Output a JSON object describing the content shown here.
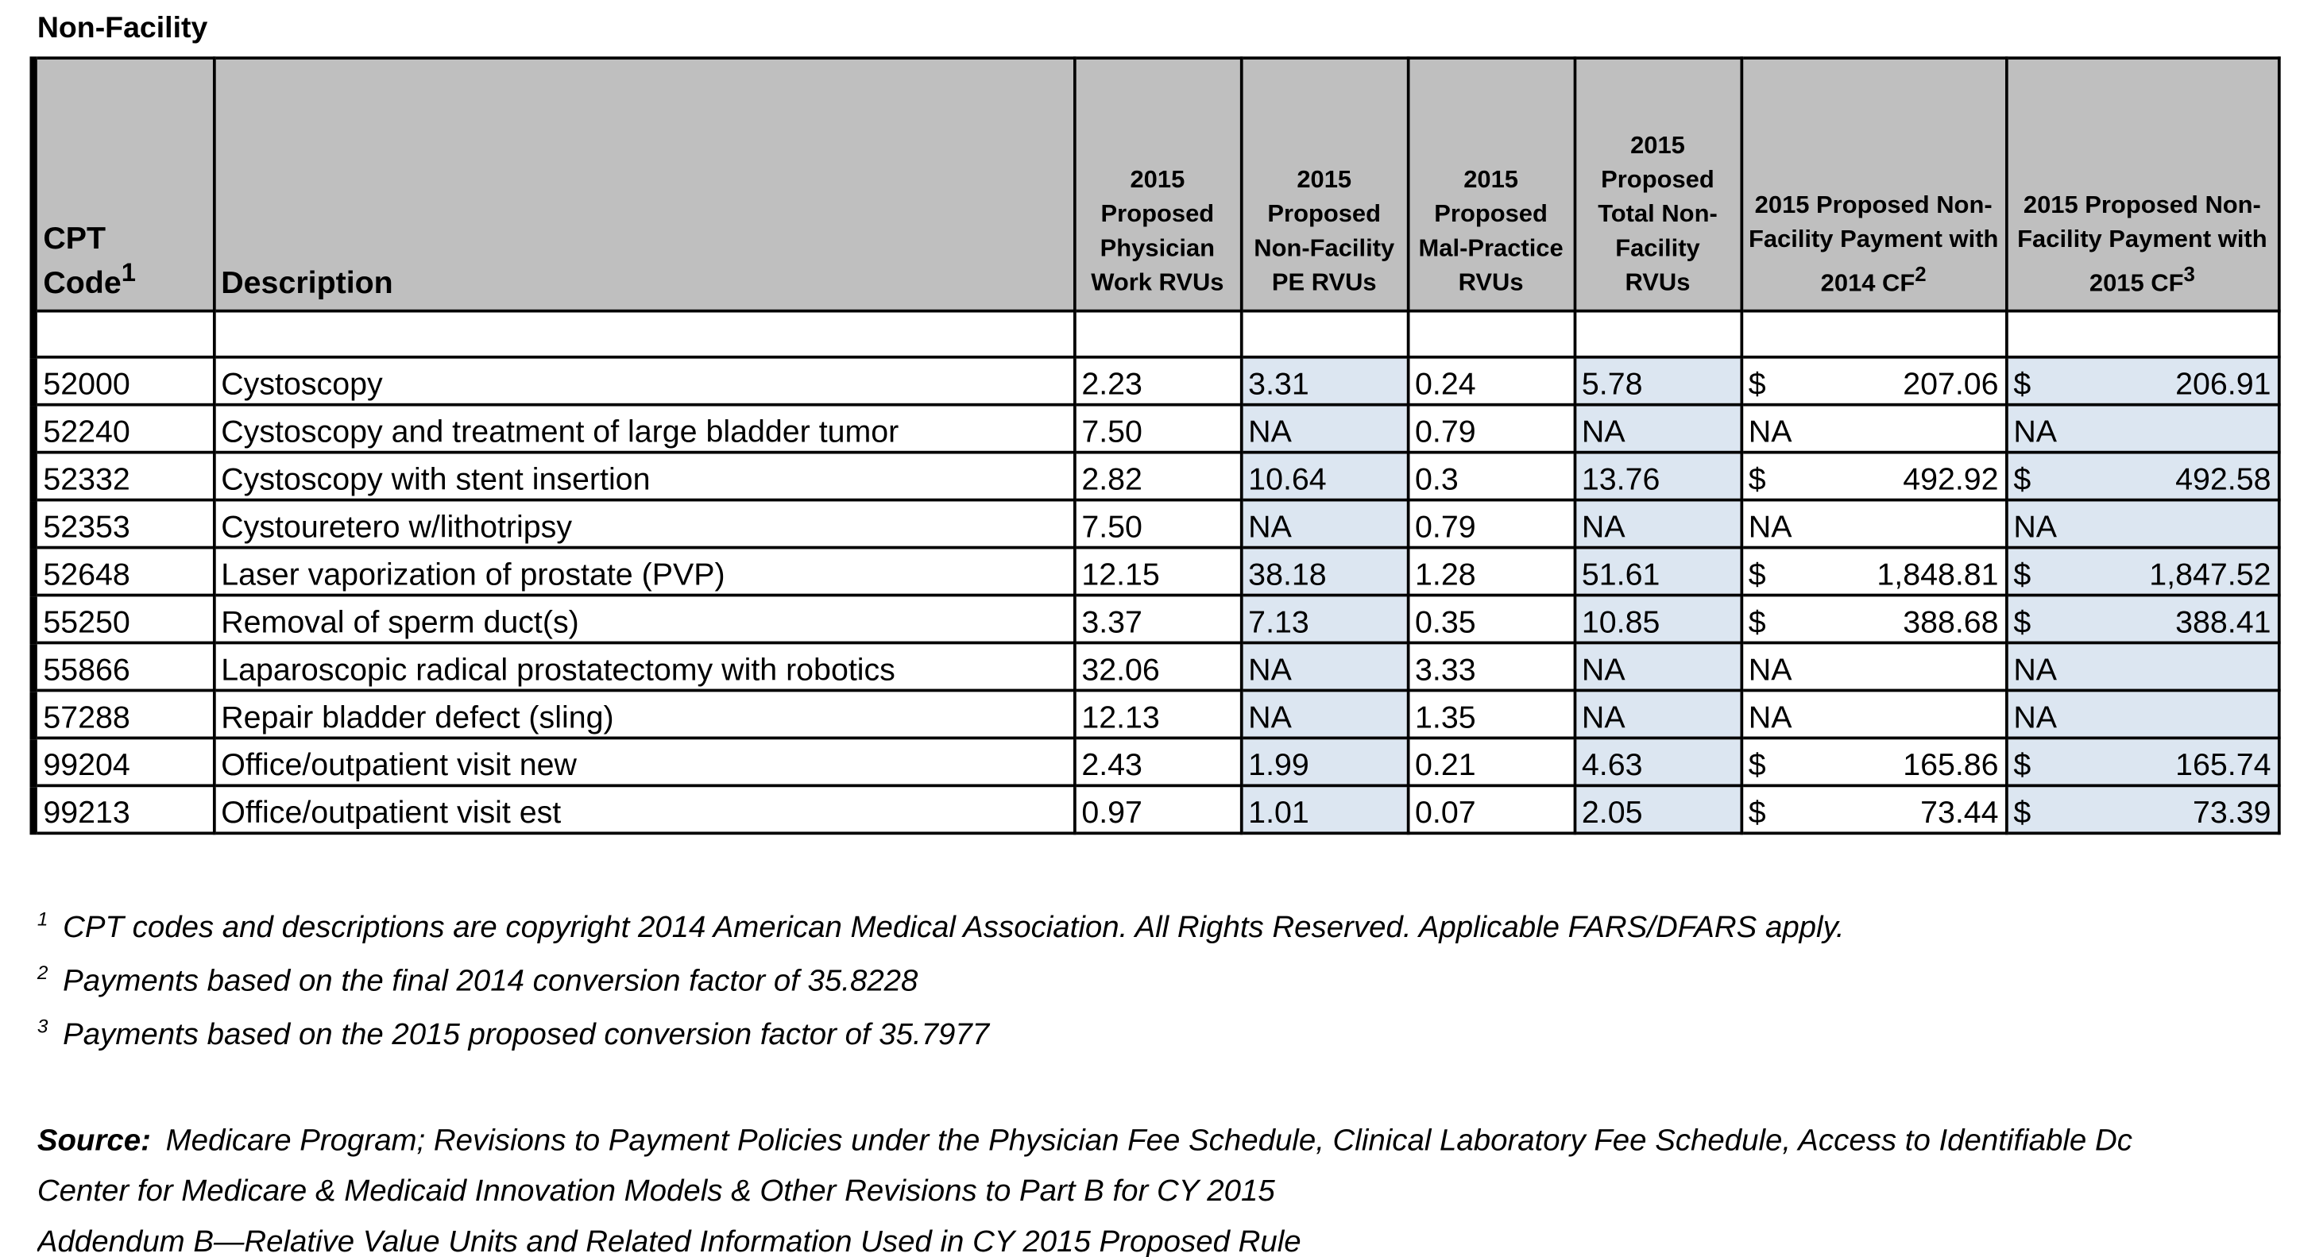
{
  "title": "Non-Facility",
  "table": {
    "header": [
      {
        "text": "CPT Code",
        "sup": "1"
      },
      {
        "text": "Description"
      },
      {
        "text": "2015 Proposed Physician Work RVUs"
      },
      {
        "text": "2015 Proposed Non-Facility PE RVUs"
      },
      {
        "text": "2015 Proposed Mal-Practice RVUs"
      },
      {
        "text": "2015 Proposed Total Non-Facility RVUs"
      },
      {
        "text": "2015 Proposed Non-Facility Payment with 2014 CF",
        "sup": "2"
      },
      {
        "text": "2015 Proposed Non-Facility Payment with 2015 CF",
        "sup": "3"
      }
    ],
    "rows": [
      [
        "52000",
        "Cystoscopy",
        "2.23",
        "3.31",
        "0.24",
        "5.78",
        {
          "symbol": "$",
          "amount": "207.06"
        },
        {
          "symbol": "$",
          "amount": "206.91"
        }
      ],
      [
        "52240",
        "Cystoscopy and treatment of large bladder tumor",
        "7.50",
        "NA",
        "0.79",
        "NA",
        "NA",
        "NA"
      ],
      [
        "52332",
        "Cystoscopy with stent insertion",
        "2.82",
        "10.64",
        "0.3",
        "13.76",
        {
          "symbol": "$",
          "amount": "492.92"
        },
        {
          "symbol": "$",
          "amount": "492.58"
        }
      ],
      [
        "52353",
        "Cystouretero w/lithotripsy",
        "7.50",
        "NA",
        "0.79",
        "NA",
        "NA",
        "NA"
      ],
      [
        "52648",
        "Laser vaporization of prostate (PVP)",
        "12.15",
        "38.18",
        "1.28",
        "51.61",
        {
          "symbol": "$",
          "amount": "1,848.81"
        },
        {
          "symbol": "$",
          "amount": "1,847.52"
        }
      ],
      [
        "55250",
        "Removal of sperm duct(s)",
        "3.37",
        "7.13",
        "0.35",
        "10.85",
        {
          "symbol": "$",
          "amount": "388.68"
        },
        {
          "symbol": "$",
          "amount": "388.41"
        }
      ],
      [
        "55866",
        "Laparoscopic radical prostatectomy with robotics",
        "32.06",
        "NA",
        "3.33",
        "NA",
        "NA",
        "NA"
      ],
      [
        "57288",
        "Repair bladder defect (sling)",
        "12.13",
        "NA",
        "1.35",
        "NA",
        "NA",
        "NA"
      ],
      [
        "99204",
        "Office/outpatient visit new",
        "2.43",
        "1.99",
        "0.21",
        "4.63",
        {
          "symbol": "$",
          "amount": "165.86"
        },
        {
          "symbol": "$",
          "amount": "165.74"
        }
      ],
      [
        "99213",
        "Office/outpatient visit est",
        "0.97",
        "1.01",
        "0.07",
        "2.05",
        {
          "symbol": "$",
          "amount": "73.44"
        },
        {
          "symbol": "$",
          "amount": "73.39"
        }
      ]
    ]
  },
  "footnotes": [
    {
      "marker": "1",
      "text": "CPT codes and descriptions are copyright 2014 American Medical Association. All Rights Reserved. Applicable FARS/DFARS apply."
    },
    {
      "marker": "2",
      "text": "Payments based on the final 2014 conversion factor of 35.8228"
    },
    {
      "marker": "3",
      "text": "Payments based on the 2015 proposed conversion factor of 35.7977"
    }
  ],
  "source": {
    "label": "Source:",
    "lines": [
      "Medicare Program; Revisions to Payment Policies under the Physician Fee Schedule, Clinical Laboratory Fee Schedule, Access to Identifiable Dc",
      "Center for Medicare & Medicaid Innovation Models & Other Revisions to Part B for CY 2015",
      "Addendum B—Relative Value Units and Related Information Used in CY 2015 Proposed Rule"
    ]
  }
}
